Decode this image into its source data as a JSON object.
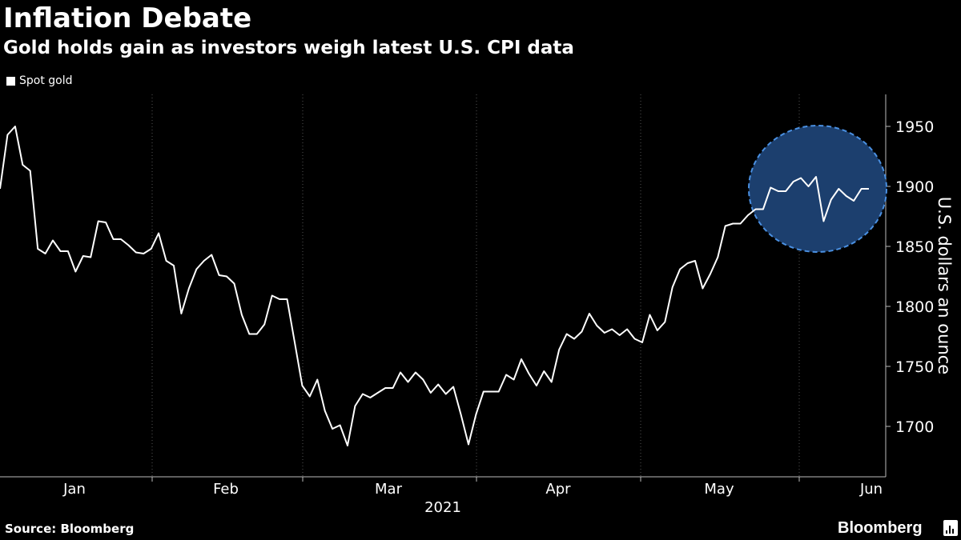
{
  "header": {
    "title": "Inflation Debate",
    "subtitle": "Gold holds gain as investors weigh latest U.S. CPI data"
  },
  "footer": {
    "source": "Source: Bloomberg",
    "brand": "Bloomberg"
  },
  "colors": {
    "background": "#000000",
    "line": "#ffffff",
    "highlight_fill": "#1c3f6e",
    "highlight_stroke": "#4a90e2",
    "grid": "#555555"
  },
  "chart_data": {
    "type": "line",
    "title": "Inflation Debate",
    "subtitle": "Gold holds gain as investors weigh latest U.S. CPI data",
    "ylabel": "U.S. dollars an ounce",
    "xlabel": "2021",
    "ylim": [
      1665,
      1975
    ],
    "y_ticks": [
      1700,
      1750,
      1800,
      1850,
      1900,
      1950
    ],
    "x_ticks": [
      "Jan",
      "Feb",
      "Mar",
      "Apr",
      "May",
      "Jun"
    ],
    "grid": "vertical dotted",
    "legend_position": "top-left",
    "y_axis_position": "right",
    "highlight": "circle around latest values (mid-May to early June)",
    "series": [
      {
        "name": "Spot gold",
        "values": [
          1898,
          1943,
          1950,
          1918,
          1913,
          1848,
          1844,
          1855,
          1846,
          1846,
          1829,
          1842,
          1841,
          1871,
          1870,
          1856,
          1856,
          1851,
          1845,
          1844,
          1848,
          1861,
          1838,
          1834,
          1794,
          1815,
          1831,
          1838,
          1843,
          1826,
          1825,
          1819,
          1793,
          1777,
          1777,
          1785,
          1809,
          1806,
          1806,
          1770,
          1734,
          1725,
          1739,
          1713,
          1698,
          1701,
          1684,
          1717,
          1727,
          1724,
          1728,
          1732,
          1732,
          1745,
          1737,
          1745,
          1739,
          1728,
          1735,
          1727,
          1733,
          1710,
          1685,
          1710,
          1729,
          1729,
          1729,
          1743,
          1739,
          1756,
          1744,
          1734,
          1746,
          1737,
          1764,
          1777,
          1773,
          1779,
          1794,
          1784,
          1778,
          1781,
          1776,
          1781,
          1773,
          1770,
          1793,
          1780,
          1787,
          1816,
          1831,
          1836,
          1838,
          1815,
          1827,
          1841,
          1867,
          1869,
          1869,
          1876,
          1881,
          1881,
          1899,
          1896,
          1896,
          1904,
          1907,
          1900,
          1908,
          1871,
          1889,
          1898,
          1892,
          1888,
          1898,
          1898
        ]
      }
    ]
  }
}
